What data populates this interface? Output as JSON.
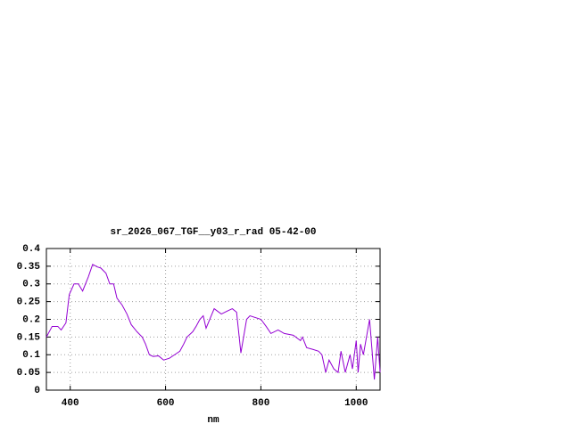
{
  "chart_data": {
    "type": "line",
    "title": "sr_2026_067_TGF__y03_r_rad 05-42-00",
    "x_label": "nm",
    "xlim": [
      350,
      1050
    ],
    "xticks": [
      400,
      600,
      800,
      1000
    ],
    "ylim": [
      0,
      0.4
    ],
    "yticks": [
      0,
      0.05,
      0.1,
      0.15,
      0.2,
      0.25,
      0.3,
      0.35,
      0.4
    ],
    "grid": true,
    "series": [
      {
        "color": "#9400d3",
        "x": [
          350,
          362,
          374,
          381,
          391,
          398,
          408,
          417,
          426,
          438,
          447,
          457,
          464,
          475,
          483,
          491,
          498,
          509,
          519,
          528,
          540,
          551,
          558,
          566,
          574,
          585,
          596,
          608,
          619,
          630,
          638,
          645,
          657,
          664,
          672,
          679,
          685,
          702,
          717,
          732,
          740,
          749,
          758,
          770,
          777,
          800,
          811,
          821,
          836,
          849,
          868,
          883,
          887,
          896,
          909,
          921,
          928,
          936,
          943,
          953,
          962,
          968,
          977,
          987,
          992,
          1000,
          1004,
          1009,
          1015,
          1028,
          1038,
          1045,
          1050
        ],
        "values": [
          0.15,
          0.18,
          0.18,
          0.17,
          0.19,
          0.27,
          0.3,
          0.3,
          0.28,
          0.32,
          0.355,
          0.348,
          0.345,
          0.33,
          0.3,
          0.3,
          0.26,
          0.24,
          0.215,
          0.185,
          0.165,
          0.15,
          0.13,
          0.1,
          0.095,
          0.097,
          0.085,
          0.09,
          0.1,
          0.11,
          0.13,
          0.15,
          0.165,
          0.18,
          0.2,
          0.21,
          0.175,
          0.23,
          0.215,
          0.225,
          0.23,
          0.22,
          0.105,
          0.2,
          0.21,
          0.2,
          0.18,
          0.16,
          0.17,
          0.16,
          0.155,
          0.14,
          0.15,
          0.12,
          0.115,
          0.11,
          0.1,
          0.05,
          0.085,
          0.06,
          0.05,
          0.11,
          0.05,
          0.1,
          0.06,
          0.14,
          0.05,
          0.13,
          0.1,
          0.2,
          0.03,
          0.15,
          0.05
        ]
      }
    ]
  }
}
